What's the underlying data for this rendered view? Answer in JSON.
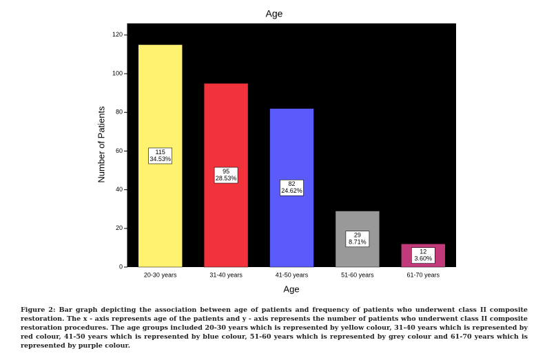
{
  "chart_data": {
    "type": "bar",
    "title": "Age",
    "x_label": "Age",
    "y_label": "Number of Patients",
    "categories": [
      "20-30 years",
      "31-40 years",
      "41-50 years",
      "51-60 years",
      "61-70 years"
    ],
    "values": [
      115,
      95,
      82,
      29,
      12
    ],
    "percent_labels": [
      "34.53%",
      "28.53%",
      "24.62%",
      "8.71%",
      "3.60%"
    ],
    "colors": [
      "#fef26e",
      "#f2333b",
      "#5b5bfc",
      "#999999",
      "#c23a79"
    ],
    "ylim": [
      0,
      126
    ],
    "yticks": [
      0,
      20,
      40,
      60,
      80,
      100,
      120
    ],
    "grid": false
  },
  "caption": "Figure 2: Bar graph depicting the association between age of patients and frequency of patients who underwent class II composite restoration. The x - axis represents age of the patients and y - axis represents the number of patients who underwent class II composite restoration procedures. The age groups included 20-30 years which is represented by yellow colour, 31-40 years which is represented by red colour, 41-50 years which is represented by blue colour, 51-60 years which is represented by grey colour and 61-70 years which is represented by purple colour."
}
